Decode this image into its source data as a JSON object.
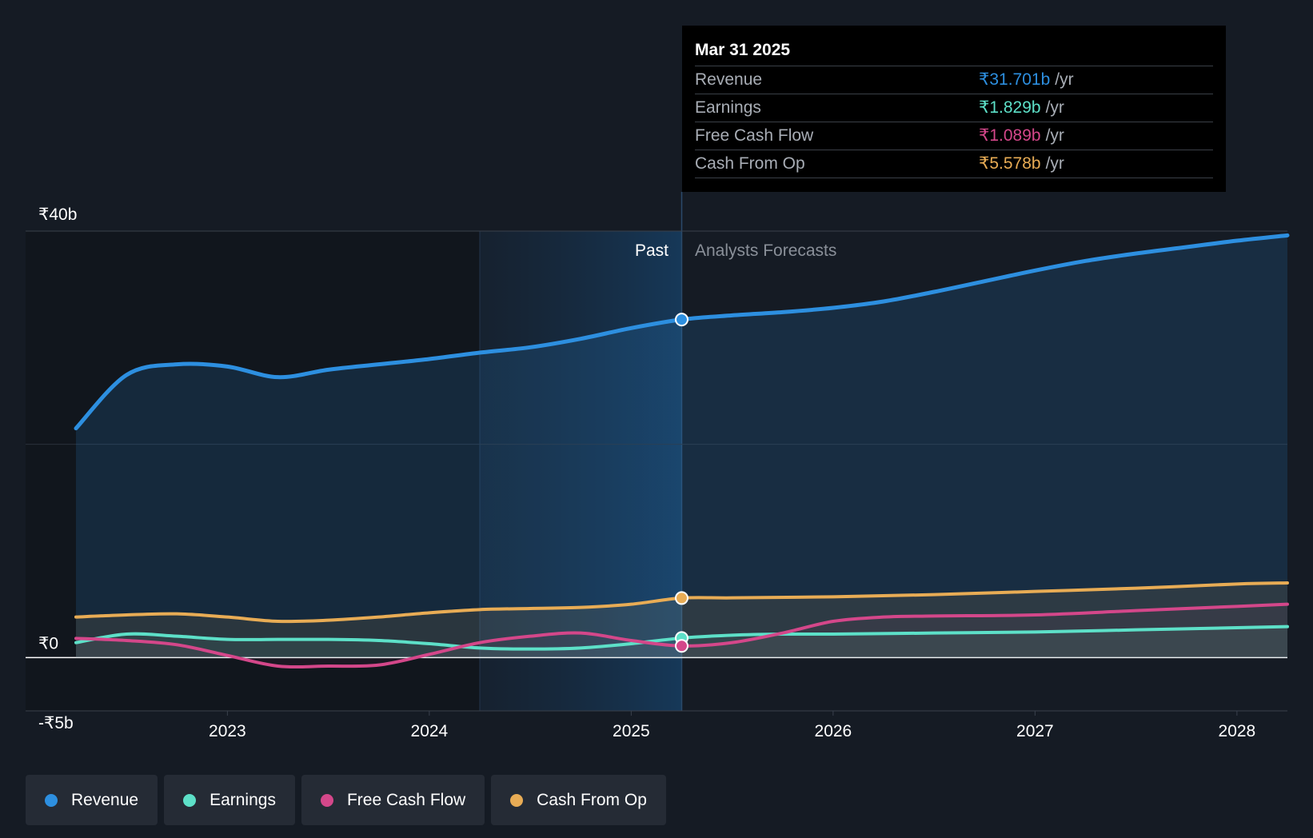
{
  "tooltip": {
    "date": "Mar 31 2025",
    "rows": [
      {
        "label": "Revenue",
        "value": "₹31.701b",
        "unit": "/yr",
        "color": "#2d8fe0"
      },
      {
        "label": "Earnings",
        "value": "₹1.829b",
        "unit": "/yr",
        "color": "#5de0c8"
      },
      {
        "label": "Free Cash Flow",
        "value": "₹1.089b",
        "unit": "/yr",
        "color": "#d4478a"
      },
      {
        "label": "Cash From Op",
        "value": "₹5.578b",
        "unit": "/yr",
        "color": "#e8ac55"
      }
    ]
  },
  "chart_data": {
    "type": "line",
    "x_ticks": [
      "2023",
      "2024",
      "2025",
      "2026",
      "2027",
      "2028"
    ],
    "y_ticks": [
      {
        "value": 40,
        "label": "₹40b"
      },
      {
        "value": 0,
        "label": "₹0"
      },
      {
        "value": -5,
        "label": "-₹5b"
      }
    ],
    "ylim": [
      -5,
      40
    ],
    "xlim": [
      2022.25,
      2028.25
    ],
    "past_label": "Past",
    "forecast_label": "Analysts Forecasts",
    "split_x": 2025.25,
    "highlight_start_x": 2024.25,
    "series": [
      {
        "name": "Revenue",
        "color": "#2d8fe0",
        "points": [
          [
            2022.25,
            21.5
          ],
          [
            2022.5,
            26.5
          ],
          [
            2022.75,
            27.5
          ],
          [
            2023.0,
            27.3
          ],
          [
            2023.25,
            26.3
          ],
          [
            2023.5,
            27.0
          ],
          [
            2023.75,
            27.5
          ],
          [
            2024.0,
            28.0
          ],
          [
            2024.25,
            28.6
          ],
          [
            2024.5,
            29.1
          ],
          [
            2024.75,
            29.9
          ],
          [
            2025.0,
            30.9
          ],
          [
            2025.25,
            31.7
          ],
          [
            2025.5,
            32.1
          ],
          [
            2025.75,
            32.4
          ],
          [
            2026.0,
            32.8
          ],
          [
            2026.25,
            33.4
          ],
          [
            2026.5,
            34.3
          ],
          [
            2026.75,
            35.3
          ],
          [
            2027.0,
            36.3
          ],
          [
            2027.25,
            37.2
          ],
          [
            2027.5,
            37.9
          ],
          [
            2027.75,
            38.5
          ],
          [
            2028.0,
            39.1
          ],
          [
            2028.25,
            39.6
          ]
        ]
      },
      {
        "name": "Earnings",
        "color": "#5de0c8",
        "points": [
          [
            2022.25,
            1.4
          ],
          [
            2022.5,
            2.2
          ],
          [
            2022.75,
            2.0
          ],
          [
            2023.0,
            1.7
          ],
          [
            2023.25,
            1.7
          ],
          [
            2023.5,
            1.7
          ],
          [
            2023.75,
            1.6
          ],
          [
            2024.0,
            1.3
          ],
          [
            2024.25,
            0.9
          ],
          [
            2024.5,
            0.8
          ],
          [
            2024.75,
            0.9
          ],
          [
            2025.0,
            1.3
          ],
          [
            2025.25,
            1.83
          ],
          [
            2025.5,
            2.1
          ],
          [
            2025.75,
            2.2
          ],
          [
            2026.0,
            2.2
          ],
          [
            2026.5,
            2.3
          ],
          [
            2027.0,
            2.4
          ],
          [
            2027.5,
            2.6
          ],
          [
            2028.0,
            2.8
          ],
          [
            2028.25,
            2.9
          ]
        ]
      },
      {
        "name": "Free Cash Flow",
        "color": "#d4478a",
        "points": [
          [
            2022.25,
            1.8
          ],
          [
            2022.5,
            1.6
          ],
          [
            2022.75,
            1.2
          ],
          [
            2023.0,
            0.2
          ],
          [
            2023.25,
            -0.8
          ],
          [
            2023.5,
            -0.8
          ],
          [
            2023.75,
            -0.7
          ],
          [
            2024.0,
            0.3
          ],
          [
            2024.25,
            1.4
          ],
          [
            2024.5,
            2.0
          ],
          [
            2024.75,
            2.3
          ],
          [
            2025.0,
            1.6
          ],
          [
            2025.25,
            1.09
          ],
          [
            2025.5,
            1.4
          ],
          [
            2025.75,
            2.3
          ],
          [
            2026.0,
            3.4
          ],
          [
            2026.25,
            3.8
          ],
          [
            2026.5,
            3.9
          ],
          [
            2027.0,
            4.0
          ],
          [
            2027.5,
            4.4
          ],
          [
            2028.0,
            4.8
          ],
          [
            2028.25,
            5.0
          ]
        ]
      },
      {
        "name": "Cash From Op",
        "color": "#e8ac55",
        "points": [
          [
            2022.25,
            3.8
          ],
          [
            2022.5,
            4.0
          ],
          [
            2022.75,
            4.1
          ],
          [
            2023.0,
            3.8
          ],
          [
            2023.25,
            3.4
          ],
          [
            2023.5,
            3.5
          ],
          [
            2023.75,
            3.8
          ],
          [
            2024.0,
            4.2
          ],
          [
            2024.25,
            4.5
          ],
          [
            2024.5,
            4.6
          ],
          [
            2024.75,
            4.7
          ],
          [
            2025.0,
            5.0
          ],
          [
            2025.25,
            5.58
          ],
          [
            2025.5,
            5.6
          ],
          [
            2026.0,
            5.7
          ],
          [
            2026.5,
            5.9
          ],
          [
            2027.0,
            6.2
          ],
          [
            2027.5,
            6.5
          ],
          [
            2028.0,
            6.9
          ],
          [
            2028.25,
            7.0
          ]
        ]
      }
    ]
  },
  "legend": [
    {
      "label": "Revenue",
      "color": "#2d8fe0"
    },
    {
      "label": "Earnings",
      "color": "#5de0c8"
    },
    {
      "label": "Free Cash Flow",
      "color": "#d4478a"
    },
    {
      "label": "Cash From Op",
      "color": "#e8ac55"
    }
  ]
}
